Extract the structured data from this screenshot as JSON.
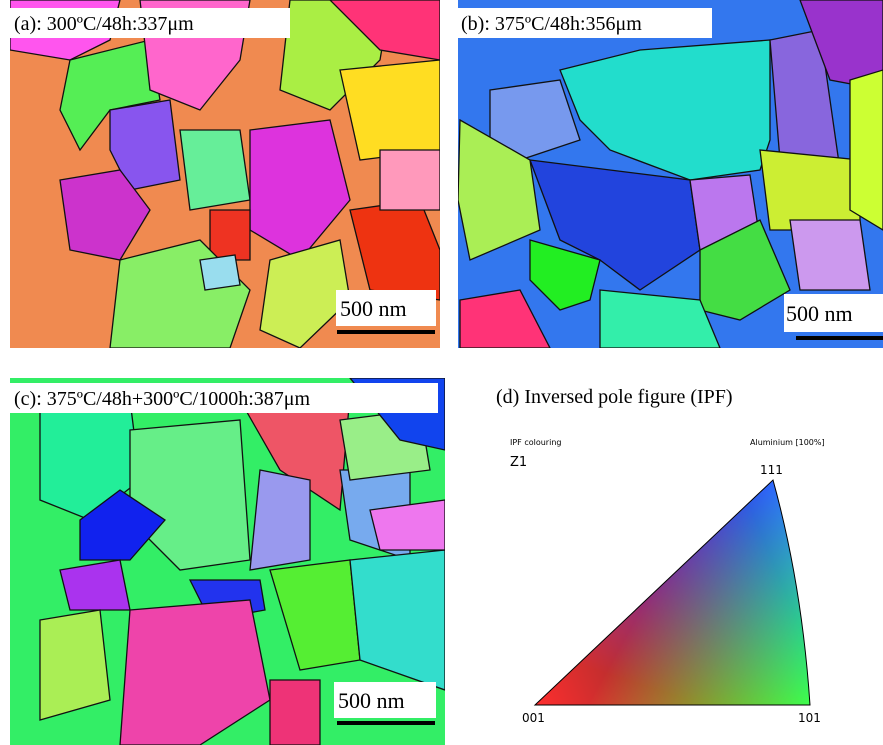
{
  "panels": [
    {
      "label": "(a): 300ºC/48h:337μm",
      "scale_bar": "500 nm"
    },
    {
      "label": "(b): 375ºC/48h:356μm",
      "scale_bar": "500 nm"
    },
    {
      "label": "(c): 375ºC/48h+300ºC/1000h:387μm",
      "scale_bar": "500 nm"
    }
  ],
  "ipf": {
    "title": "(d) Inversed pole figure (IPF)",
    "colouring_label": "IPF colouring",
    "material": "Aluminium [100%]",
    "axis": "Z1",
    "vertex_001": "001",
    "vertex_101": "101",
    "vertex_111": "111"
  }
}
